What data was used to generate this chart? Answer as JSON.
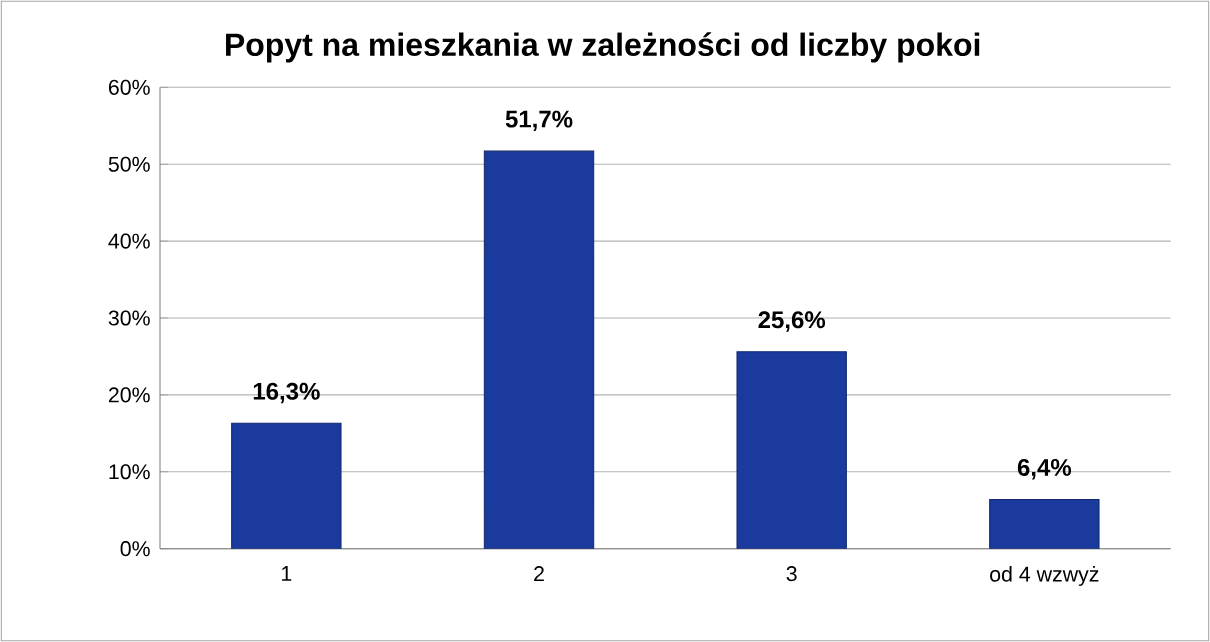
{
  "chart_data": {
    "type": "bar",
    "title": "Popyt na mieszkania w zależności od liczby pokoi",
    "categories": [
      "1",
      "2",
      "3",
      "od 4 wzwyż"
    ],
    "values": [
      16.3,
      51.7,
      25.6,
      6.4
    ],
    "value_labels": [
      "16,3%",
      "51,7%",
      "25,6%",
      "6,4%"
    ],
    "color": "#1a3a9e",
    "ylim": [
      0,
      60
    ],
    "yticks": [
      {
        "value": 0,
        "label": "0%"
      },
      {
        "value": 10,
        "label": "10%"
      },
      {
        "value": 20,
        "label": "20%"
      },
      {
        "value": 30,
        "label": "30%"
      },
      {
        "value": 40,
        "label": "40%"
      },
      {
        "value": 50,
        "label": "50%"
      },
      {
        "value": 60,
        "label": "60%"
      }
    ],
    "grid": "y"
  }
}
